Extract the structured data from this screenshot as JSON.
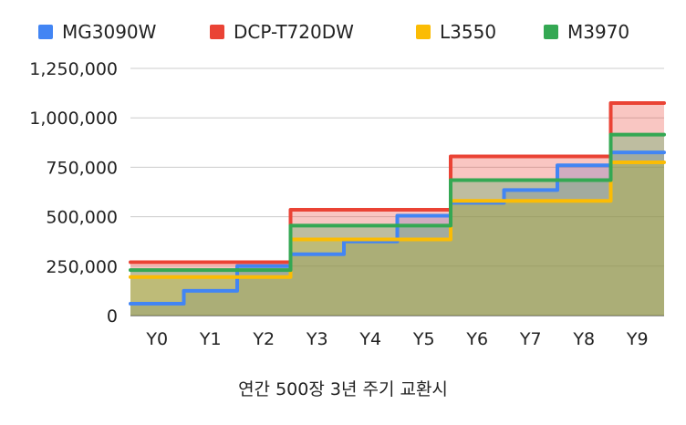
{
  "chart_data": {
    "type": "area",
    "step": true,
    "categories": [
      "Y0",
      "Y1",
      "Y2",
      "Y3",
      "Y4",
      "Y5",
      "Y6",
      "Y7",
      "Y8",
      "Y9"
    ],
    "series": [
      {
        "name": "MG3090W",
        "color": "#4285F4",
        "values": [
          60000,
          125000,
          250000,
          310000,
          375000,
          505000,
          570000,
          635000,
          760000,
          825000
        ]
      },
      {
        "name": "DCP-T720DW",
        "color": "#EA4335",
        "values": [
          270000,
          270000,
          270000,
          535000,
          535000,
          535000,
          805000,
          805000,
          805000,
          1075000
        ]
      },
      {
        "name": "L3550",
        "color": "#FBBC04",
        "values": [
          195000,
          195000,
          195000,
          385000,
          385000,
          385000,
          580000,
          580000,
          580000,
          775000
        ]
      },
      {
        "name": "M3970",
        "color": "#34A853",
        "values": [
          230000,
          230000,
          230000,
          455000,
          455000,
          455000,
          685000,
          685000,
          685000,
          915000
        ]
      }
    ],
    "ylim": [
      0,
      1250000
    ],
    "yticks": [
      0,
      250000,
      500000,
      750000,
      1000000,
      1250000
    ],
    "ytick_labels": [
      "0",
      "250,000",
      "500,000",
      "750,000",
      "1,000,000",
      "1,250,000"
    ],
    "xlabel": "연간 500장 3년 주기 교환시",
    "ylabel": "",
    "title": "",
    "legend": "top",
    "grid": true
  }
}
